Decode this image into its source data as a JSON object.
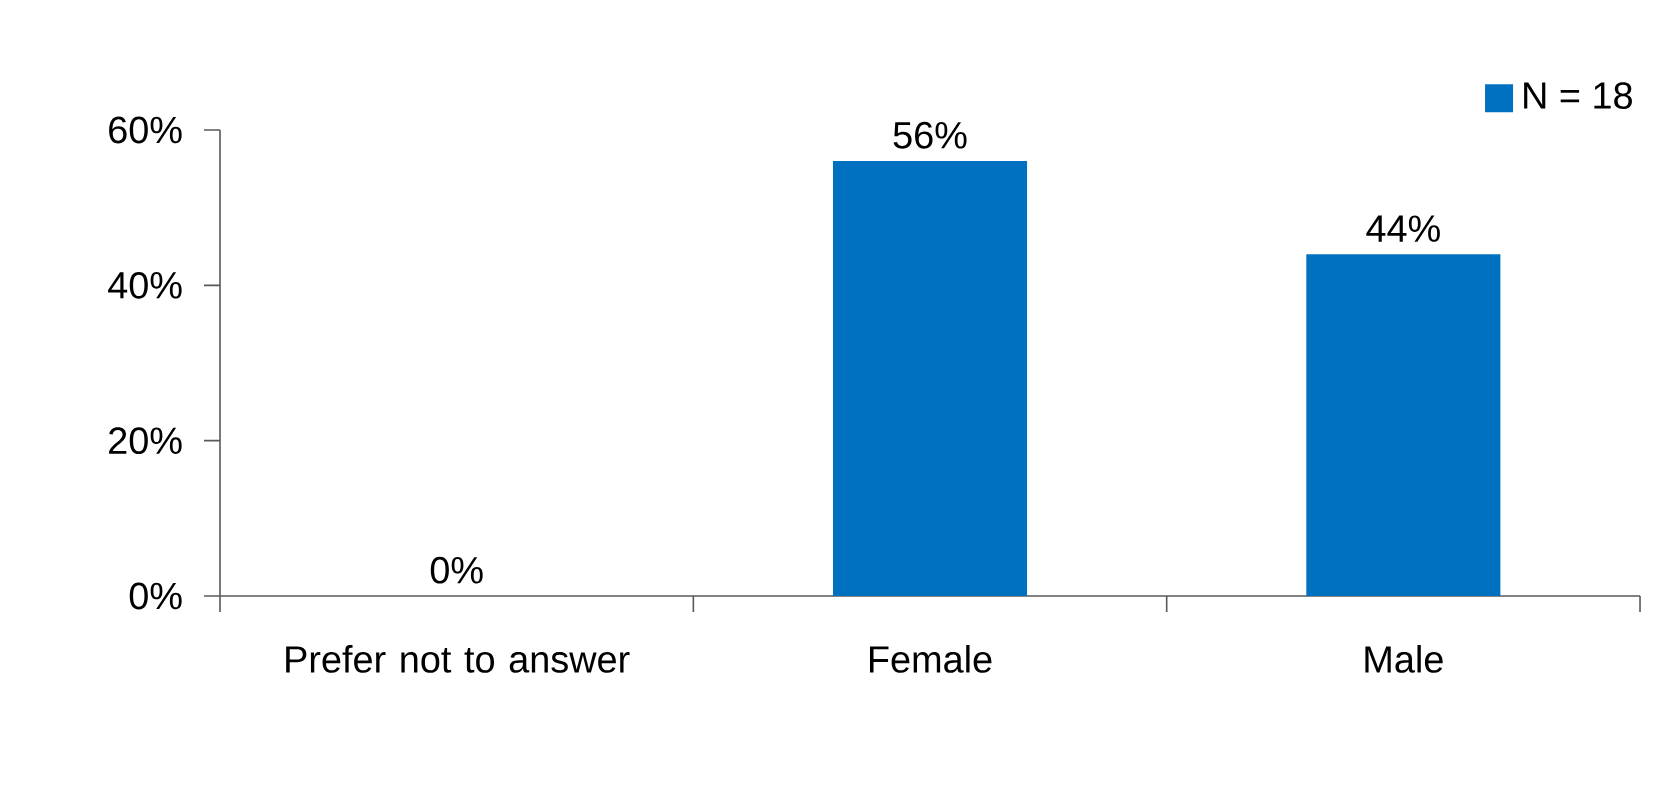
{
  "chart_data": {
    "type": "bar",
    "categories": [
      "Prefer not to answer",
      "Female",
      "Male"
    ],
    "series": [
      {
        "name": "N = 18",
        "color": "#0070c0",
        "values": [
          0,
          56,
          44
        ],
        "value_labels": [
          "0%",
          "56%",
          "44%"
        ]
      }
    ],
    "ylim": [
      0,
      60
    ],
    "yticks": [
      {
        "value": 0,
        "label": "0%"
      },
      {
        "value": 20,
        "label": "20%"
      },
      {
        "value": 40,
        "label": "40%"
      },
      {
        "value": 60,
        "label": "60%"
      }
    ],
    "grid": false,
    "legend": "top right"
  }
}
